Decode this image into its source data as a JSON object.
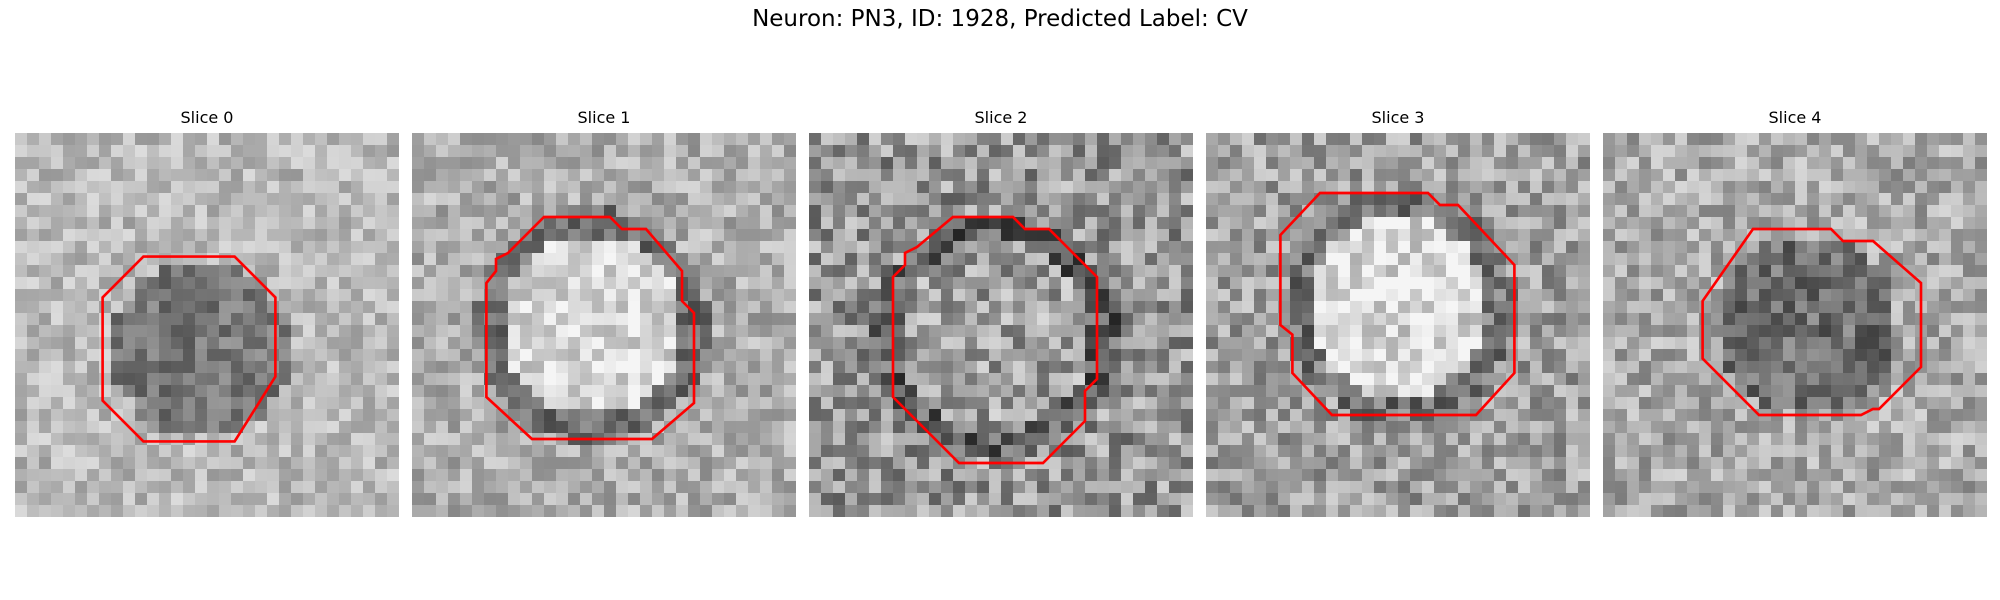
{
  "figure": {
    "title": "Neuron: PN3, ID: 1928, Predicted Label: CV"
  },
  "panels": [
    {
      "title": "Slice 0"
    },
    {
      "title": "Slice 1"
    },
    {
      "title": "Slice 2"
    },
    {
      "title": "Slice 3"
    },
    {
      "title": "Slice 4"
    }
  ],
  "colors": {
    "contour": "#ff0000",
    "background": "#ffffff"
  }
}
